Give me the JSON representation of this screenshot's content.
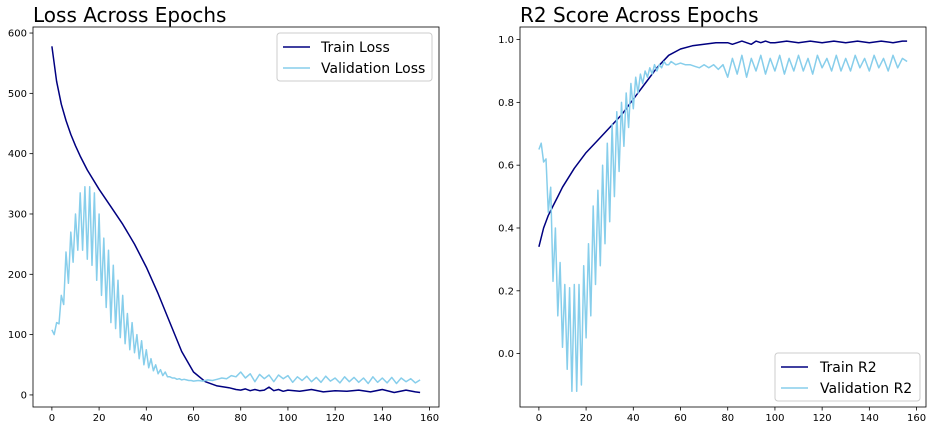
{
  "chart_data": [
    {
      "type": "line",
      "title": "Loss Across Epochs",
      "xlabel": "",
      "ylabel": "",
      "xlim": [
        -8,
        164
      ],
      "ylim": [
        -20,
        610
      ],
      "xticks": [
        0,
        20,
        40,
        60,
        80,
        100,
        120,
        140,
        160
      ],
      "yticks": [
        0,
        100,
        200,
        300,
        400,
        500,
        600
      ],
      "grid": false,
      "legend_position": "top-right",
      "series": [
        {
          "name": "Train Loss",
          "color": "#000080",
          "x": [
            0,
            2,
            4,
            6,
            8,
            10,
            12,
            15,
            20,
            25,
            30,
            35,
            40,
            45,
            50,
            55,
            60,
            65,
            70,
            75,
            78,
            80,
            82,
            84,
            86,
            88,
            90,
            92,
            94,
            96,
            98,
            100,
            105,
            110,
            115,
            120,
            125,
            130,
            135,
            140,
            145,
            150,
            154,
            156
          ],
          "y": [
            578,
            520,
            482,
            455,
            432,
            413,
            396,
            373,
            341,
            312,
            283,
            250,
            212,
            168,
            120,
            72,
            38,
            22,
            15,
            12,
            9,
            8,
            10,
            7,
            9,
            7,
            8,
            13,
            7,
            9,
            6,
            8,
            6,
            9,
            5,
            7,
            6,
            8,
            5,
            9,
            4,
            8,
            5,
            4
          ]
        },
        {
          "name": "Validation Loss",
          "color": "#87ceeb",
          "x": [
            0,
            1,
            2,
            3,
            4,
            5,
            6,
            7,
            8,
            9,
            10,
            11,
            12,
            13,
            14,
            15,
            16,
            17,
            18,
            19,
            20,
            21,
            22,
            23,
            24,
            25,
            26,
            27,
            28,
            29,
            30,
            31,
            32,
            33,
            34,
            35,
            36,
            37,
            38,
            39,
            40,
            41,
            42,
            43,
            44,
            45,
            46,
            47,
            48,
            49,
            50,
            51,
            52,
            53,
            54,
            55,
            56,
            57,
            58,
            59,
            60,
            62,
            64,
            66,
            68,
            70,
            72,
            74,
            76,
            78,
            80,
            82,
            84,
            86,
            88,
            90,
            92,
            94,
            96,
            98,
            100,
            102,
            104,
            106,
            108,
            110,
            112,
            114,
            116,
            118,
            120,
            122,
            124,
            126,
            128,
            130,
            132,
            134,
            136,
            138,
            140,
            142,
            144,
            146,
            148,
            150,
            152,
            154,
            156
          ],
          "y": [
            108,
            100,
            120,
            118,
            165,
            150,
            237,
            185,
            270,
            220,
            300,
            240,
            335,
            240,
            345,
            225,
            345,
            215,
            335,
            190,
            300,
            165,
            260,
            145,
            240,
            120,
            215,
            110,
            190,
            95,
            165,
            85,
            135,
            75,
            120,
            70,
            100,
            60,
            90,
            50,
            75,
            45,
            60,
            40,
            50,
            35,
            42,
            32,
            38,
            30,
            30,
            28,
            28,
            26,
            27,
            25,
            26,
            25,
            24,
            24,
            23,
            24,
            23,
            25,
            24,
            26,
            28,
            27,
            32,
            30,
            38,
            28,
            35,
            22,
            34,
            27,
            33,
            22,
            33,
            27,
            32,
            21,
            30,
            24,
            31,
            22,
            29,
            21,
            31,
            23,
            28,
            20,
            30,
            22,
            29,
            21,
            28,
            19,
            30,
            21,
            28,
            20,
            29,
            19,
            28,
            22,
            27,
            20,
            25
          ]
        }
      ]
    },
    {
      "type": "line",
      "title": "R2 Score Across Epochs",
      "xlabel": "",
      "ylabel": "",
      "xlim": [
        -8,
        164
      ],
      "ylim": [
        -0.17,
        1.04
      ],
      "xticks": [
        0,
        20,
        40,
        60,
        80,
        100,
        120,
        140,
        160
      ],
      "yticks": [
        0.0,
        0.2,
        0.4,
        0.6,
        0.8,
        1.0
      ],
      "grid": false,
      "legend_position": "bottom-right",
      "series": [
        {
          "name": "Train R2",
          "color": "#000080",
          "x": [
            0,
            2,
            4,
            6,
            8,
            10,
            15,
            20,
            25,
            30,
            35,
            40,
            45,
            50,
            55,
            60,
            65,
            70,
            75,
            80,
            82,
            84,
            86,
            88,
            90,
            92,
            94,
            96,
            98,
            100,
            105,
            110,
            115,
            120,
            125,
            130,
            135,
            140,
            145,
            150,
            154,
            156
          ],
          "y": [
            0.34,
            0.4,
            0.44,
            0.47,
            0.5,
            0.53,
            0.59,
            0.64,
            0.68,
            0.72,
            0.76,
            0.81,
            0.86,
            0.91,
            0.95,
            0.97,
            0.98,
            0.985,
            0.99,
            0.99,
            0.985,
            0.99,
            0.995,
            0.99,
            0.985,
            0.995,
            0.99,
            0.995,
            0.99,
            0.99,
            0.995,
            0.99,
            0.995,
            0.99,
            0.995,
            0.99,
            0.995,
            0.99,
            0.995,
            0.99,
            0.995,
            0.995
          ]
        },
        {
          "name": "Validation R2",
          "color": "#87ceeb",
          "x": [
            0,
            1,
            2,
            3,
            4,
            5,
            6,
            7,
            8,
            9,
            10,
            11,
            12,
            13,
            14,
            15,
            16,
            17,
            18,
            19,
            20,
            21,
            22,
            23,
            24,
            25,
            26,
            27,
            28,
            29,
            30,
            31,
            32,
            33,
            34,
            35,
            36,
            37,
            38,
            39,
            40,
            41,
            42,
            43,
            44,
            45,
            46,
            47,
            48,
            49,
            50,
            51,
            52,
            53,
            54,
            55,
            56,
            58,
            60,
            62,
            64,
            66,
            68,
            70,
            72,
            74,
            76,
            78,
            80,
            82,
            84,
            86,
            88,
            90,
            92,
            94,
            96,
            98,
            100,
            102,
            104,
            106,
            108,
            110,
            112,
            114,
            116,
            118,
            120,
            122,
            124,
            126,
            128,
            130,
            132,
            134,
            136,
            138,
            140,
            142,
            144,
            146,
            148,
            150,
            152,
            154,
            156
          ],
          "y": [
            0.65,
            0.67,
            0.61,
            0.62,
            0.45,
            0.53,
            0.23,
            0.4,
            0.12,
            0.29,
            0.02,
            0.22,
            -0.05,
            0.21,
            -0.12,
            0.22,
            -0.12,
            0.22,
            -0.1,
            0.28,
            0.05,
            0.35,
            0.12,
            0.47,
            0.22,
            0.52,
            0.28,
            0.6,
            0.35,
            0.67,
            0.42,
            0.73,
            0.5,
            0.77,
            0.58,
            0.8,
            0.66,
            0.83,
            0.72,
            0.86,
            0.78,
            0.88,
            0.83,
            0.89,
            0.86,
            0.9,
            0.88,
            0.91,
            0.89,
            0.92,
            0.9,
            0.92,
            0.91,
            0.93,
            0.92,
            0.92,
            0.93,
            0.92,
            0.925,
            0.92,
            0.92,
            0.915,
            0.91,
            0.92,
            0.91,
            0.92,
            0.905,
            0.92,
            0.88,
            0.94,
            0.89,
            0.95,
            0.88,
            0.94,
            0.9,
            0.95,
            0.89,
            0.94,
            0.9,
            0.95,
            0.89,
            0.94,
            0.9,
            0.95,
            0.9,
            0.94,
            0.89,
            0.95,
            0.91,
            0.94,
            0.9,
            0.95,
            0.9,
            0.94,
            0.9,
            0.95,
            0.91,
            0.94,
            0.9,
            0.95,
            0.91,
            0.94,
            0.9,
            0.95,
            0.91,
            0.94,
            0.93
          ]
        }
      ]
    }
  ]
}
